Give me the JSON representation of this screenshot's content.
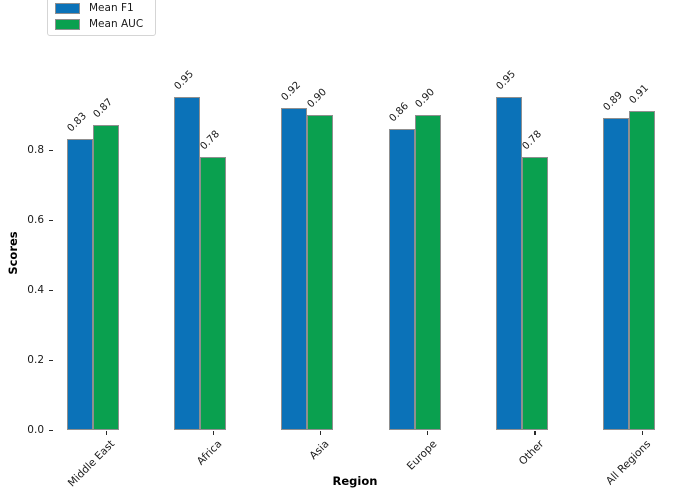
{
  "chart_data": {
    "type": "bar",
    "categories": [
      "Middle East",
      "Africa",
      "Asia",
      "Europe",
      "Other",
      "All Regions"
    ],
    "series": [
      {
        "name": "Mean F1",
        "color": "#0b72b8",
        "values": [
          0.83,
          0.95,
          0.92,
          0.86,
          0.95,
          0.89
        ]
      },
      {
        "name": "Mean AUC",
        "color": "#0aa04f",
        "values": [
          0.87,
          0.78,
          0.9,
          0.9,
          0.78,
          0.91
        ]
      }
    ],
    "xlabel": "Region",
    "ylabel": "Scores",
    "yticks": [
      "0.0",
      "0.2",
      "0.4",
      "0.6",
      "0.8"
    ],
    "ylim": [
      0.0,
      1.0
    ],
    "grid": false,
    "spines_visible": false,
    "legend_position": "upper-left",
    "bar_edge_color": "#8f8f8f",
    "value_label_rotation_deg": 45,
    "xtick_label_rotation_deg": 45
  },
  "legend": {
    "items": [
      {
        "label": "Mean F1"
      },
      {
        "label": "Mean AUC"
      }
    ]
  }
}
